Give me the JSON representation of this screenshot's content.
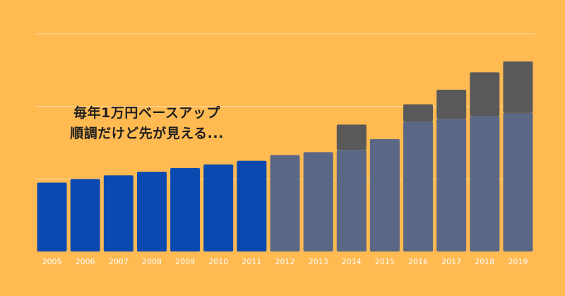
{
  "chart_data": {
    "type": "bar",
    "stacked": true,
    "title": "",
    "xlabel": "",
    "ylabel": "",
    "categories": [
      "2005",
      "2006",
      "2007",
      "2008",
      "2009",
      "2010",
      "2011",
      "2012",
      "2013",
      "2014",
      "2015",
      "2016",
      "2017",
      "2018",
      "2019"
    ],
    "series": [
      {
        "values": [
          9.5,
          10.0,
          10.5,
          11.0,
          11.5,
          12.0,
          12.5,
          null,
          null,
          null,
          null,
          null,
          null,
          null,
          null
        ]
      },
      {
        "values": [
          null,
          null,
          null,
          null,
          null,
          null,
          null,
          13.3,
          13.7,
          14.0,
          15.5,
          17.9,
          18.3,
          18.7,
          19.1
        ]
      },
      {
        "values": [
          0,
          0,
          0,
          0,
          0,
          0,
          0,
          0,
          0,
          3.5,
          0,
          2.4,
          4.0,
          6.0,
          7.1
        ]
      }
    ],
    "ylim": [
      0,
      30
    ],
    "grid": true,
    "legend": "none",
    "annotation": [
      "毎年1万円ベースアップ",
      "順調だけど先が見える..."
    ],
    "colors": {
      "background": "#FFBA52",
      "series1": "#0A4AB0",
      "series2": "#5B6885",
      "series3": "#595959",
      "tick_label": "#FFFFFF",
      "grid": "#FFD9A0"
    }
  }
}
